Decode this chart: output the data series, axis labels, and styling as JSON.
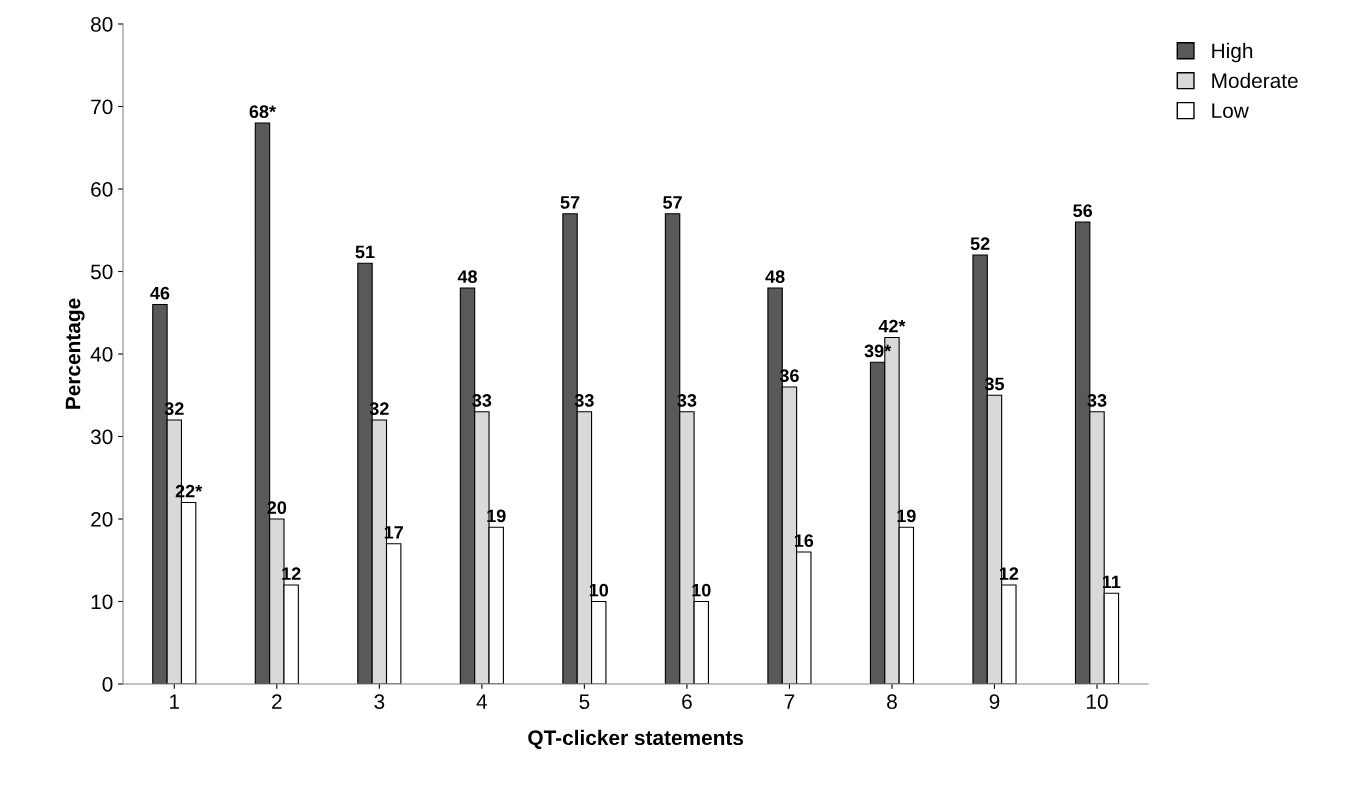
{
  "chart_data": {
    "type": "bar",
    "xlabel": "QT-clicker statements",
    "ylabel": "Percentage",
    "categories": [
      "1",
      "2",
      "3",
      "4",
      "5",
      "6",
      "7",
      "8",
      "9",
      "10"
    ],
    "series": [
      {
        "name": "High",
        "color": "#595959",
        "values": [
          46,
          68,
          51,
          48,
          57,
          57,
          48,
          39,
          52,
          56
        ],
        "value_labels": [
          "46",
          "68*",
          "51",
          "48",
          "57",
          "57",
          "48",
          "39*",
          "52",
          "56"
        ]
      },
      {
        "name": "Moderate",
        "color": "#d9d9d9",
        "values": [
          32,
          20,
          32,
          33,
          33,
          33,
          36,
          42,
          35,
          33
        ],
        "value_labels": [
          "32",
          "20",
          "32",
          "33",
          "33",
          "33",
          "36",
          "42*",
          "35",
          "33"
        ]
      },
      {
        "name": "Low",
        "color": "#ffffff",
        "values": [
          22,
          12,
          17,
          19,
          10,
          10,
          16,
          19,
          12,
          11
        ],
        "value_labels": [
          "22*",
          "12",
          "17",
          "19",
          "10",
          "10",
          "16",
          "19",
          "12",
          "11"
        ]
      }
    ],
    "ylim": [
      0,
      80
    ],
    "yticks": [
      0,
      10,
      20,
      30,
      40,
      50,
      60,
      70,
      80
    ],
    "grid": false,
    "legend": "top right"
  }
}
